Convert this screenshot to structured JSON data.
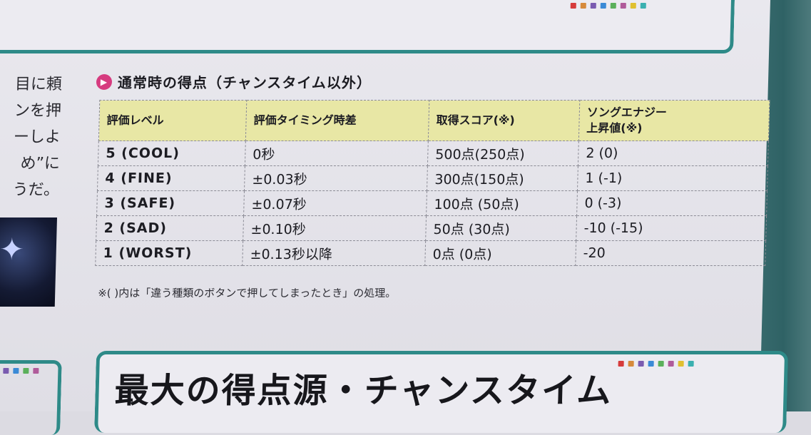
{
  "section": {
    "title": "通常時の得点（チャンスタイム以外）",
    "marker_icon": "play-triangle-icon"
  },
  "table": {
    "headers": [
      "評価レベル",
      "評価タイミング時差",
      "取得スコア(※)",
      "ソングエナジー",
      "上昇値(※)"
    ],
    "rows": [
      {
        "level": "5 (COOL)",
        "timing": "0秒",
        "score": "500点(250点)",
        "energy": "2 (0)"
      },
      {
        "level": "4 (FINE)",
        "timing": "±0.03秒",
        "score": "300点(150点)",
        "energy": "1 (-1)"
      },
      {
        "level": "3 (SAFE)",
        "timing": "±0.07秒",
        "score": "100点 (50点)",
        "energy": "0 (-3)"
      },
      {
        "level": "2 (SAD)",
        "timing": "±0.10秒",
        "score": "50点 (30点)",
        "energy": "-10 (-15)"
      },
      {
        "level": "1 (WORST)",
        "timing": "±0.13秒以降",
        "score": "0点 (0点)",
        "energy": "-20"
      }
    ],
    "header_color": "#e8e7a5"
  },
  "footnote": "※( )内は「違う種類のボタンで押してしまったとき」の処理。",
  "left_column": {
    "lines": [
      "目に頼",
      "ンを押",
      "ーしよ",
      "め”に",
      "うだ。"
    ]
  },
  "next_heading": "最大の得点源・チャンスタイム",
  "colors": {
    "frame": "#2e8a88",
    "marker": "#d63b7f",
    "dots": [
      "#d63b3b",
      "#d68a3b",
      "#7a5bb0",
      "#3b8ad6",
      "#5bb05b",
      "#b05b9a",
      "#e0c030",
      "#3bb0b0"
    ]
  }
}
